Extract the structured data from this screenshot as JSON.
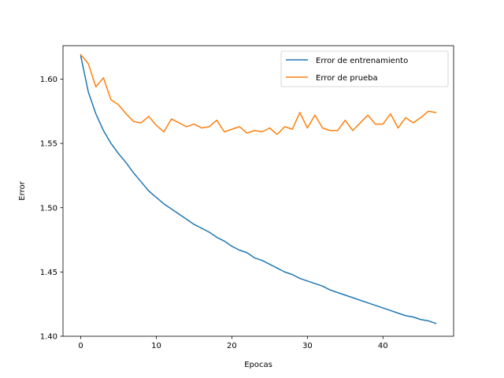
{
  "chart_data": {
    "type": "line",
    "title": "",
    "xlabel": "Epocas",
    "ylabel": "Error",
    "xlim": [
      -2.35,
      49.35
    ],
    "ylim": [
      1.4,
      1.626
    ],
    "xticks": [
      0,
      10,
      20,
      30,
      40
    ],
    "yticks": [
      1.4,
      1.45,
      1.5,
      1.55,
      1.6
    ],
    "ytick_format": 2,
    "grid": false,
    "legend_position": "top-right",
    "x": [
      0,
      1,
      2,
      3,
      4,
      5,
      6,
      7,
      8,
      9,
      10,
      11,
      12,
      13,
      14,
      15,
      16,
      17,
      18,
      19,
      20,
      21,
      22,
      23,
      24,
      25,
      26,
      27,
      28,
      29,
      30,
      31,
      32,
      33,
      34,
      35,
      36,
      37,
      38,
      39,
      40,
      41,
      42,
      43,
      44,
      45,
      46,
      47
    ],
    "series": [
      {
        "name": "Error de entrenamiento",
        "color": "#1f77b4",
        "values": [
          1.618,
          1.59,
          1.573,
          1.56,
          1.55,
          1.542,
          1.535,
          1.527,
          1.52,
          1.513,
          1.508,
          1.503,
          1.499,
          1.495,
          1.491,
          1.487,
          1.484,
          1.481,
          1.477,
          1.474,
          1.47,
          1.467,
          1.465,
          1.461,
          1.459,
          1.456,
          1.453,
          1.45,
          1.448,
          1.445,
          1.443,
          1.441,
          1.439,
          1.436,
          1.434,
          1.432,
          1.43,
          1.428,
          1.426,
          1.424,
          1.422,
          1.42,
          1.418,
          1.416,
          1.415,
          1.413,
          1.412,
          1.41
        ]
      },
      {
        "name": "Error de prueba",
        "color": "#ff7f0e",
        "values": [
          1.619,
          1.612,
          1.594,
          1.601,
          1.584,
          1.58,
          1.573,
          1.567,
          1.566,
          1.571,
          1.564,
          1.559,
          1.569,
          1.566,
          1.563,
          1.565,
          1.562,
          1.563,
          1.568,
          1.559,
          1.561,
          1.563,
          1.558,
          1.56,
          1.559,
          1.562,
          1.557,
          1.563,
          1.561,
          1.574,
          1.562,
          1.572,
          1.562,
          1.56,
          1.56,
          1.568,
          1.56,
          1.566,
          1.572,
          1.565,
          1.565,
          1.573,
          1.562,
          1.57,
          1.566,
          1.57,
          1.575,
          1.574
        ]
      }
    ]
  }
}
